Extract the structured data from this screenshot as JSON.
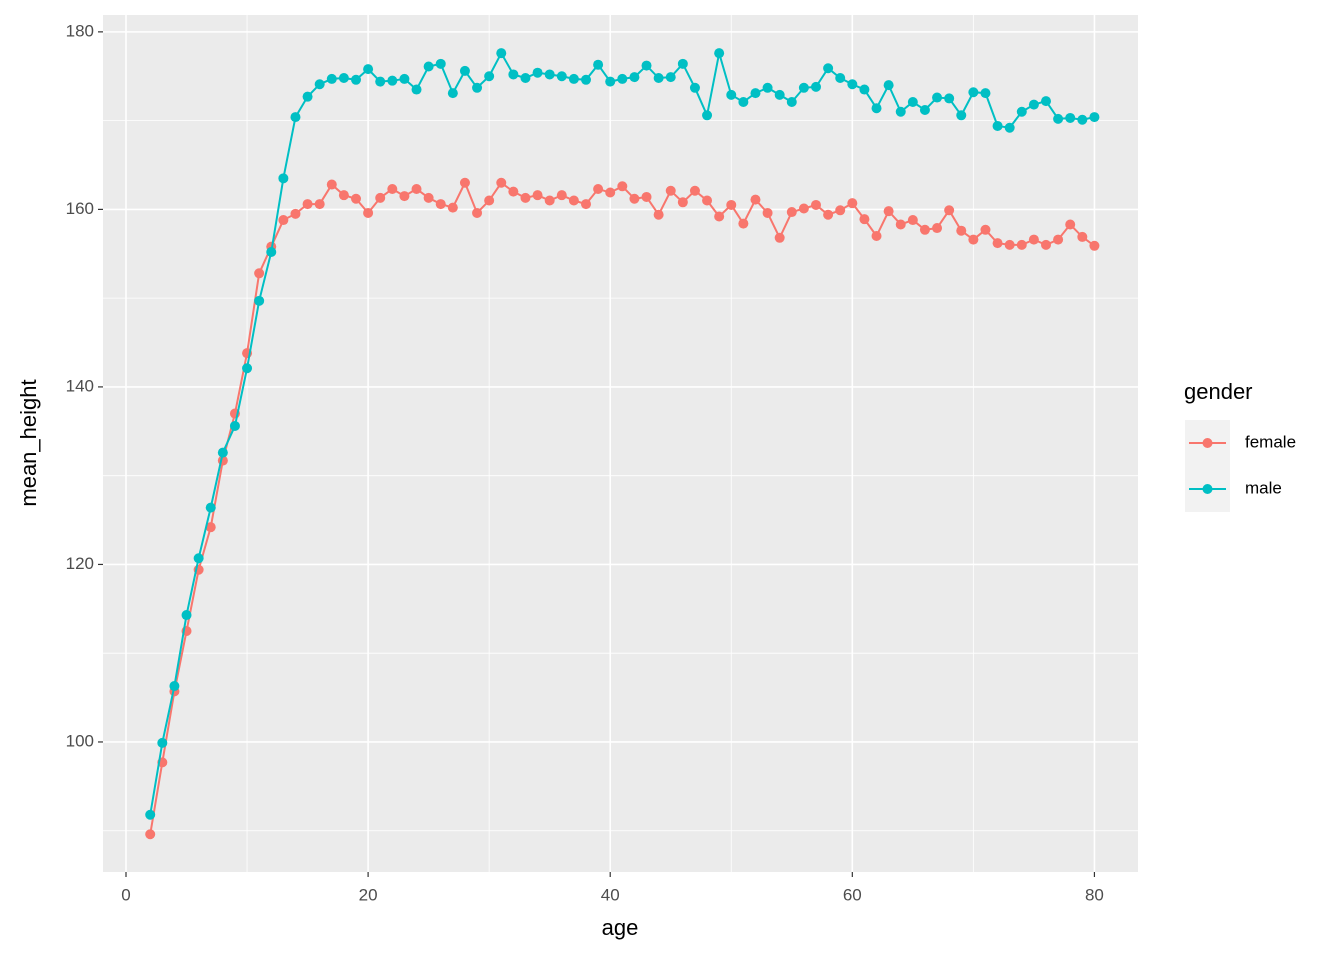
{
  "chart_data": {
    "type": "line",
    "x_label": "age",
    "y_label": "mean_height",
    "legend_title": "gender",
    "legend_position": "right",
    "grid": true,
    "xlim": [
      -1.9,
      83.6
    ],
    "ylim": [
      85.35,
      181.9
    ],
    "xticks": [
      0,
      20,
      40,
      60,
      80
    ],
    "yticks": [
      100,
      120,
      140,
      160,
      180
    ],
    "x": [
      2,
      3,
      4,
      5,
      6,
      7,
      8,
      9,
      10,
      11,
      12,
      13,
      14,
      15,
      16,
      17,
      18,
      19,
      20,
      21,
      22,
      23,
      24,
      25,
      26,
      27,
      28,
      29,
      30,
      31,
      32,
      33,
      34,
      35,
      36,
      37,
      38,
      39,
      40,
      41,
      42,
      43,
      44,
      45,
      46,
      47,
      48,
      49,
      50,
      51,
      52,
      53,
      54,
      55,
      56,
      57,
      58,
      59,
      60,
      61,
      62,
      63,
      64,
      65,
      66,
      67,
      68,
      69,
      70,
      71,
      72,
      73,
      74,
      75,
      76,
      77,
      78,
      79,
      80
    ],
    "series": [
      {
        "name": "female",
        "color": "#F8766D",
        "values": [
          89.6,
          97.7,
          105.7,
          112.5,
          119.4,
          124.2,
          131.7,
          137.0,
          143.8,
          152.8,
          155.8,
          158.8,
          159.5,
          160.6,
          160.6,
          162.8,
          161.6,
          161.2,
          159.6,
          161.3,
          162.3,
          161.5,
          162.3,
          161.3,
          160.6,
          160.2,
          163.0,
          159.6,
          161.0,
          163.0,
          162.0,
          161.3,
          161.6,
          161.0,
          161.6,
          161.0,
          160.6,
          162.3,
          161.9,
          162.6,
          161.2,
          161.4,
          159.4,
          162.1,
          160.8,
          162.1,
          161.0,
          159.2,
          160.5,
          158.4,
          161.1,
          159.6,
          156.8,
          159.7,
          160.1,
          160.5,
          159.4,
          159.9,
          160.7,
          158.9,
          157.0,
          159.8,
          158.3,
          158.8,
          157.7,
          157.9,
          159.9,
          157.6,
          156.6,
          157.7,
          156.2,
          156.0,
          156.0,
          156.6,
          156.0,
          156.6,
          158.3,
          156.9,
          155.9
        ]
      },
      {
        "name": "male",
        "color": "#00BFC4",
        "values": [
          91.8,
          99.9,
          106.3,
          114.3,
          120.7,
          126.4,
          132.6,
          135.6,
          142.1,
          149.7,
          155.2,
          163.5,
          170.4,
          172.7,
          174.1,
          174.7,
          174.8,
          174.6,
          175.8,
          174.4,
          174.5,
          174.7,
          173.5,
          176.1,
          176.4,
          173.1,
          175.6,
          173.7,
          175.0,
          177.6,
          175.2,
          174.8,
          175.4,
          175.2,
          175.0,
          174.7,
          174.6,
          176.3,
          174.4,
          174.7,
          174.9,
          176.2,
          174.8,
          174.9,
          176.4,
          173.7,
          170.6,
          177.6,
          172.9,
          172.1,
          173.1,
          173.7,
          172.9,
          172.1,
          173.7,
          173.8,
          175.9,
          174.8,
          174.1,
          173.5,
          171.4,
          174.0,
          171.0,
          172.1,
          171.2,
          172.6,
          172.5,
          170.6,
          173.2,
          173.1,
          169.4,
          169.2,
          171.0,
          171.8,
          172.2,
          170.2,
          170.3,
          170.1,
          170.4
        ]
      }
    ]
  }
}
